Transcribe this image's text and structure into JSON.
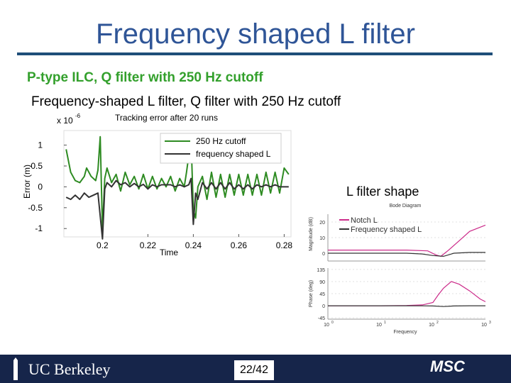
{
  "slide": {
    "title": "Frequency shaped L filter",
    "subtitle_1": "P-type ILC, Q filter with 250 Hz cutoff",
    "subtitle_2": "Frequency-shaped L filter, Q filter with 250 Hz cutoff",
    "l_filter_label": "L filter shape",
    "page": "22/42",
    "footer_left": "UC Berkeley",
    "footer_right": "MSC"
  },
  "colors": {
    "green": "#2e8b22",
    "dark": "#333333",
    "magenta": "#cc2b8a",
    "title": "#2f5597"
  },
  "chart_data": [
    {
      "type": "line",
      "title": "Tracking error after 20 runs",
      "xlabel": "Time",
      "ylabel": "Error (m)",
      "y_scale": "x 10^-6",
      "y_scale_base": "x 10",
      "y_scale_exp": "-6",
      "xlim": [
        0.183,
        0.283
      ],
      "ylim": [
        -1.2,
        1.35
      ],
      "xticks": [
        0.2,
        0.22,
        0.24,
        0.26,
        0.28
      ],
      "xtick_labels": [
        "0.2",
        "0.22",
        "0.24",
        "0.26",
        "0.28"
      ],
      "yticks": [
        -1,
        -0.5,
        0,
        0.5,
        1
      ],
      "ytick_labels": [
        "-1",
        "-0.5",
        "0",
        "0.5",
        "1"
      ],
      "legend": [
        "250 Hz cutoff",
        "frequency shaped L"
      ],
      "series": [
        {
          "name": "250 Hz cutoff",
          "x": [
            0.184,
            0.186,
            0.188,
            0.19,
            0.192,
            0.193,
            0.195,
            0.197,
            0.198,
            0.199,
            0.2,
            0.201,
            0.202,
            0.204,
            0.206,
            0.208,
            0.21,
            0.212,
            0.214,
            0.216,
            0.218,
            0.22,
            0.222,
            0.224,
            0.226,
            0.228,
            0.23,
            0.232,
            0.234,
            0.236,
            0.237,
            0.238,
            0.239,
            0.24,
            0.241,
            0.242,
            0.244,
            0.246,
            0.248,
            0.25,
            0.252,
            0.254,
            0.256,
            0.258,
            0.26,
            0.262,
            0.264,
            0.266,
            0.268,
            0.27,
            0.272,
            0.274,
            0.276,
            0.278,
            0.28,
            0.282
          ],
          "y": [
            0.9,
            0.35,
            0.15,
            0.1,
            0.25,
            0.45,
            0.25,
            0.15,
            0.4,
            1.2,
            -1.05,
            0.2,
            0.45,
            0.1,
            0.3,
            -0.1,
            0.35,
            0.05,
            0.25,
            -0.05,
            0.3,
            -0.05,
            0.25,
            -0.05,
            0.2,
            0.0,
            0.25,
            -0.1,
            0.2,
            0.0,
            0.35,
            0.75,
            1.15,
            -0.55,
            -0.75,
            0.0,
            0.25,
            -0.3,
            0.35,
            -0.25,
            0.3,
            -0.25,
            0.3,
            -0.2,
            0.3,
            -0.2,
            0.3,
            -0.2,
            0.3,
            -0.2,
            0.35,
            -0.15,
            0.35,
            -0.15,
            0.45,
            0.3
          ]
        },
        {
          "name": "frequency shaped L",
          "x": [
            0.184,
            0.186,
            0.188,
            0.19,
            0.192,
            0.194,
            0.196,
            0.198,
            0.2,
            0.201,
            0.202,
            0.204,
            0.206,
            0.208,
            0.21,
            0.212,
            0.214,
            0.216,
            0.218,
            0.22,
            0.222,
            0.224,
            0.226,
            0.228,
            0.23,
            0.232,
            0.234,
            0.236,
            0.238,
            0.239,
            0.24,
            0.241,
            0.242,
            0.244,
            0.246,
            0.248,
            0.25,
            0.252,
            0.254,
            0.256,
            0.258,
            0.26,
            0.262,
            0.264,
            0.266,
            0.268,
            0.27,
            0.272,
            0.274,
            0.276,
            0.278,
            0.28,
            0.282
          ],
          "y": [
            -0.25,
            -0.3,
            -0.2,
            -0.3,
            -0.15,
            -0.25,
            -0.2,
            -0.15,
            -1.25,
            -0.05,
            0.1,
            0.0,
            0.15,
            0.05,
            0.1,
            0.0,
            0.08,
            0.0,
            0.06,
            -0.05,
            0.05,
            0.0,
            0.05,
            0.05,
            0.05,
            0.0,
            0.05,
            0.0,
            0.05,
            0.2,
            -0.9,
            -0.15,
            -0.3,
            0.1,
            -0.05,
            0.1,
            -0.05,
            0.1,
            -0.05,
            0.1,
            -0.05,
            0.05,
            -0.05,
            0.05,
            -0.05,
            0.05,
            0.0,
            0.05,
            0.0,
            0.05,
            0.0,
            0.0,
            0.0
          ]
        }
      ]
    },
    {
      "type": "line",
      "title": "Bode Diagram",
      "subplot": "magnitude",
      "ylabel": "Magnitude (dB)",
      "x_scale": "log",
      "xlim_exp": [
        0,
        3
      ],
      "ylim": [
        -5,
        25
      ],
      "yticks": [
        0,
        10,
        20
      ],
      "ytick_labels": [
        "0",
        "10",
        "20"
      ],
      "legend": [
        "Notch L",
        "Frequency shaped L"
      ],
      "series": [
        {
          "name": "Notch L",
          "x_exp": [
            0,
            0.5,
            1,
            1.5,
            1.9,
            2.05,
            2.15,
            2.3,
            2.5,
            2.7,
            3
          ],
          "y": [
            2,
            2,
            2,
            2,
            1.5,
            -1,
            -2,
            2,
            8,
            14,
            18
          ]
        },
        {
          "name": "Frequency shaped L",
          "x_exp": [
            0,
            0.5,
            1,
            1.5,
            1.8,
            2.0,
            2.2,
            2.4,
            2.7,
            3
          ],
          "y": [
            0,
            0,
            0,
            0,
            -0.5,
            -1.5,
            -2,
            0,
            0.5,
            0.5
          ]
        }
      ]
    },
    {
      "type": "line",
      "subplot": "phase",
      "ylabel": "Phase (deg)",
      "xlabel": "Frequency",
      "x_scale": "log",
      "xlim_exp": [
        0,
        3
      ],
      "ylim": [
        -50,
        140
      ],
      "yticks": [
        -45,
        0,
        45,
        90,
        135
      ],
      "ytick_labels": [
        "-45",
        "0",
        "45",
        "90",
        "135"
      ],
      "xtick_labels": [
        "10",
        "10",
        "10",
        "10"
      ],
      "xtick_exponents": [
        "0",
        "1",
        "2",
        "3"
      ],
      "series": [
        {
          "name": "Notch L",
          "x_exp": [
            0,
            0.5,
            1,
            1.5,
            1.8,
            2.0,
            2.1,
            2.2,
            2.35,
            2.5,
            2.7,
            2.9,
            3
          ],
          "y": [
            0,
            0,
            0,
            1,
            3,
            12,
            40,
            65,
            90,
            80,
            55,
            25,
            15
          ]
        },
        {
          "name": "Frequency shaped L",
          "x_exp": [
            0,
            0.5,
            1,
            1.5,
            1.8,
            2.0,
            2.2,
            2.4,
            2.7,
            3
          ],
          "y": [
            0,
            0,
            0,
            0,
            -0.5,
            -1,
            -3,
            -1,
            0,
            0
          ]
        }
      ]
    }
  ]
}
